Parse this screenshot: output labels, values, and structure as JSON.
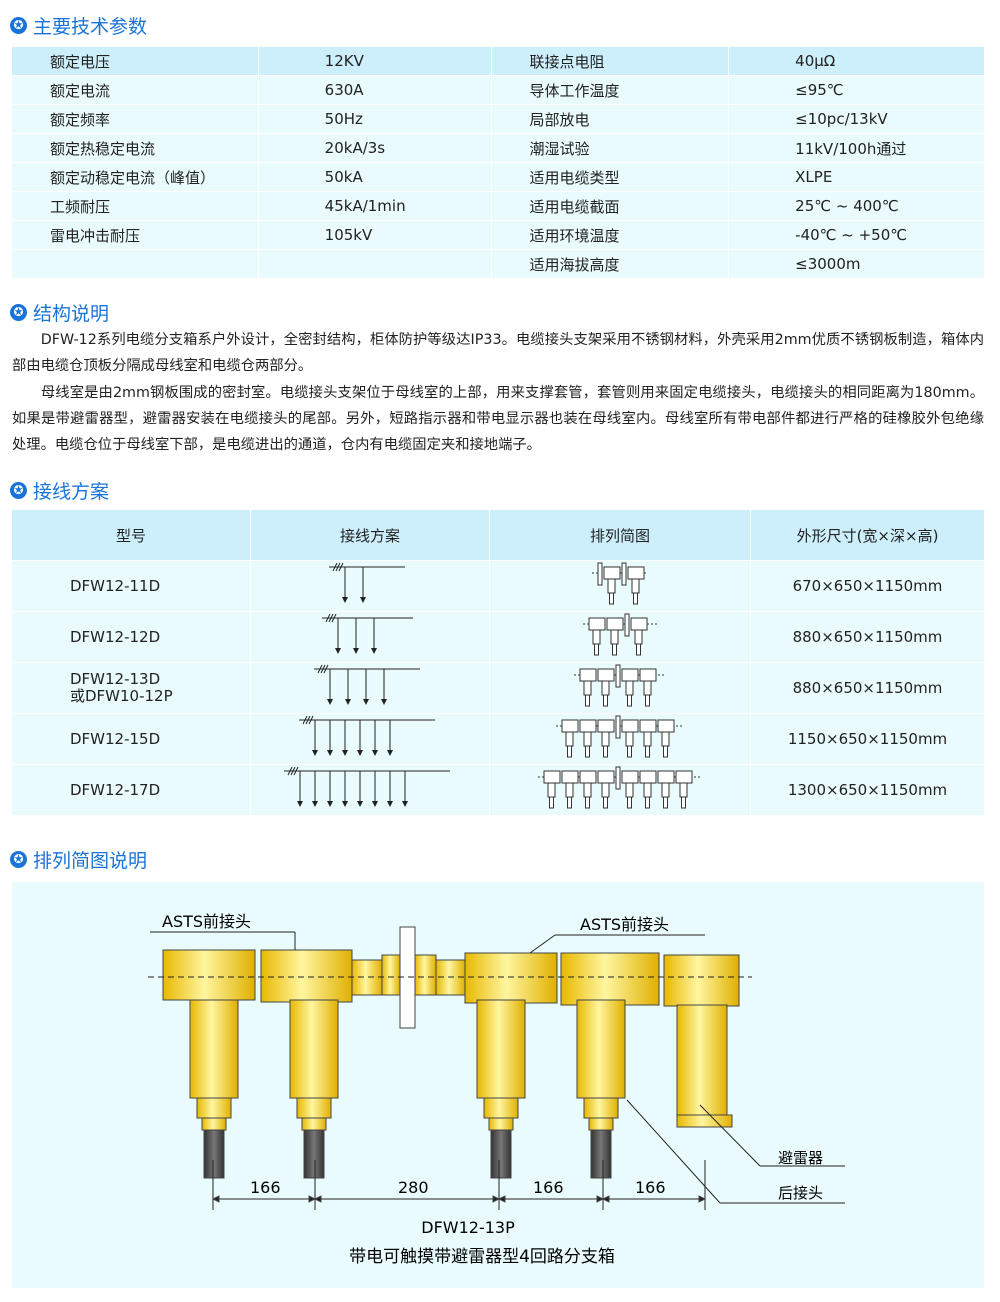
{
  "sections": {
    "specs": "主要技术参数",
    "structure": "结构说明",
    "wiring": "接线方案",
    "diagram": "排列简图说明"
  },
  "specs": [
    [
      "额定电压",
      "12KV",
      "联接点电阻",
      "40μΩ"
    ],
    [
      "额定电流",
      "630A",
      "导体工作温度",
      "≤95℃"
    ],
    [
      "额定频率",
      "50Hz",
      "局部放电",
      "≤10pc/13kV"
    ],
    [
      "额定热稳定电流",
      "20kA/3s",
      "潮湿试验",
      "11kV/100h通过"
    ],
    [
      "额定动稳定电流（峰值）",
      "50kA",
      "适用电缆类型",
      "XLPE"
    ],
    [
      "工频耐压",
      "45kA/1min",
      "适用电缆截面",
      "25℃ ~ 400℃"
    ],
    [
      "雷电冲击耐压",
      "105kV",
      "适用环境温度",
      "-40℃ ~ +50℃"
    ],
    [
      "",
      "",
      "适用海拔高度",
      "≤3000m"
    ]
  ],
  "structure": {
    "p1": "　　DFW-12系列电缆分支箱系户外设计，全密封结构，柜体防护等级达IP33。电缆接头支架采用不锈钢材料，外壳采用2mm优质不锈钢板制造，箱体内部由电缆仓顶板分隔成母线室和电缆仓两部分。",
    "p2": "　　母线室是由2mm钢板围成的密封室。电缆接头支架位于母线室的上部，用来支撑套管，套管则用来固定电缆接头，电缆接头的相同距离为180mm。如果是带避雷器型，避雷器安装在电缆接头的尾部。另外，短路指示器和带电显示器也装在母线室内。母线室所有带电部件都进行严格的硅橡胶外包绝缘处理。电缆仓位于母线室下部，是电缆进出的通道，仓内有电缆固定夹和接地端子。"
  },
  "wiring": {
    "headers": [
      "型号",
      "接线方案",
      "排列简图",
      "外形尺寸(宽×深×高)"
    ],
    "rows": [
      {
        "model": "DFW12-11D",
        "model2": "",
        "branches": 2,
        "size": "670×650×1150mm"
      },
      {
        "model": "DFW12-12D",
        "model2": "",
        "branches": 3,
        "size": "880×650×1150mm"
      },
      {
        "model": "DFW12-13D",
        "model2": "或DFW10-12P",
        "branches": 4,
        "size": "880×650×1150mm"
      },
      {
        "model": "DFW12-15D",
        "model2": "",
        "branches": 6,
        "size": "1150×650×1150mm"
      },
      {
        "model": "DFW12-17D",
        "model2": "",
        "branches": 8,
        "size": "1300×650×1150mm"
      }
    ]
  },
  "diagram": {
    "label_front_left": "ASTS前接头",
    "label_front_right": "ASTS前接头",
    "label_arrester": "避雷器",
    "label_rear": "后接头",
    "dims": [
      "166",
      "280",
      "166",
      "166"
    ],
    "model": "DFW12-13P",
    "caption": "带电可触摸带避雷器型4回路分支箱"
  },
  "colors": {
    "accent": "#1a73d9",
    "header_bg": "#cdeefb",
    "row_bg": "#e9fbfd",
    "yellow": "#f5d000"
  }
}
